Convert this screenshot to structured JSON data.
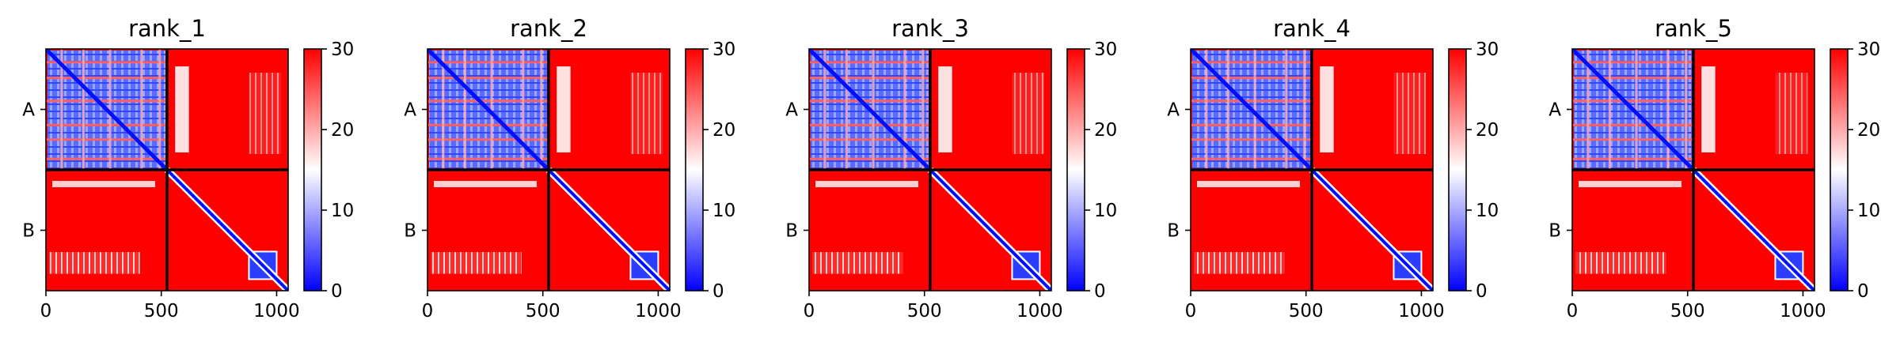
{
  "chart_data": {
    "type": "heatmap",
    "colormap": {
      "name": "bwr",
      "stops": [
        {
          "value": 0,
          "color": "#0000ff"
        },
        {
          "value": 15,
          "color": "#ffffff"
        },
        {
          "value": 30,
          "color": "#ff0000"
        }
      ]
    },
    "panels": [
      {
        "title": "rank_1"
      },
      {
        "title": "rank_2"
      },
      {
        "title": "rank_3"
      },
      {
        "title": "rank_4"
      },
      {
        "title": "rank_5"
      }
    ],
    "xlim": [
      0,
      1050
    ],
    "x_ticks": [
      0,
      500,
      1000
    ],
    "chain_boundary": 525,
    "y_tick_labels": [
      "A",
      "B"
    ],
    "colorbar": {
      "vmin": 0,
      "vmax": 30,
      "ticks": [
        0,
        10,
        20,
        30
      ]
    },
    "grid": false
  }
}
